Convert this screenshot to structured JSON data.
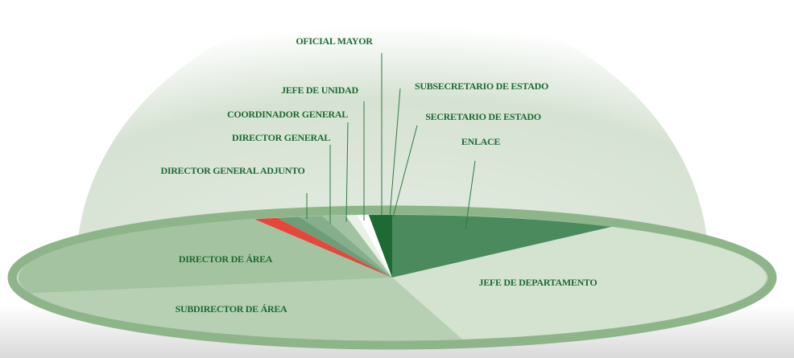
{
  "chart_data": {
    "type": "pie",
    "categories": [
      "ENLACE",
      "JEFE DE DEPARTAMENTO",
      "SUBDIRECTOR DE ÁREA",
      "DIRECTOR DE ÁREA",
      "DIRECTOR GENERAL ADJUNTO",
      "DIRECTOR GENERAL",
      "COORDINADOR GENERAL",
      "JEFE DE UNIDAD",
      "OFICIAL MAYOR",
      "SUBSECRETARIO DE ESTADO",
      "SECRETARIO DE ESTADO"
    ],
    "values": [
      10,
      37,
      24,
      23,
      1,
      1,
      1,
      1,
      0.5,
      0.5,
      1
    ],
    "colors": [
      "#4b8a5c",
      "#d3e3cf",
      "#b7cfb3",
      "#a4c3a0",
      "#e8453b",
      "#6e9d77",
      "#86ae8c",
      "#a2c3a1",
      "#e9f0e6",
      "#ffffff",
      "#1d6a34"
    ]
  }
}
